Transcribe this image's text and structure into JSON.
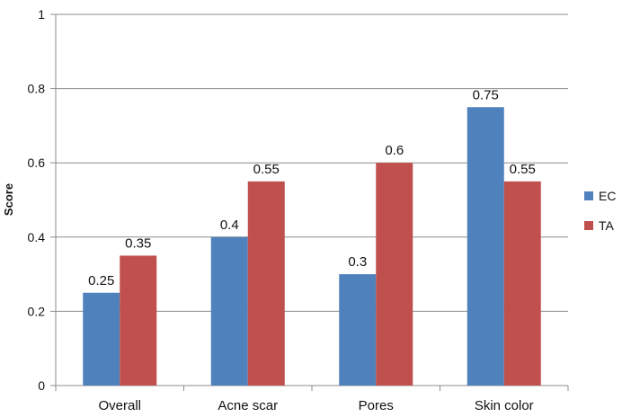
{
  "chart_data": {
    "type": "bar",
    "title": "",
    "xlabel": "",
    "ylabel": "Score",
    "ylim": [
      0,
      1
    ],
    "yticks": [
      0,
      0.2,
      0.4,
      0.6,
      0.8,
      1
    ],
    "ytick_labels": [
      "0",
      "0.2",
      "0.4",
      "0.6",
      "0.8",
      "1"
    ],
    "grid": true,
    "legend_position": "right",
    "categories": [
      "Overall",
      "Acne scar",
      "Pores",
      "Skin color"
    ],
    "series": [
      {
        "name": "EC",
        "color": "#4F81BD",
        "values": [
          0.25,
          0.4,
          0.3,
          0.75
        ],
        "labels": [
          "0.25",
          "0.4",
          "0.3",
          "0.75"
        ]
      },
      {
        "name": "TA",
        "color": "#C0504D",
        "values": [
          0.35,
          0.55,
          0.6,
          0.55
        ],
        "labels": [
          "0.35",
          "0.55",
          "0.6",
          "0.55"
        ]
      }
    ]
  }
}
